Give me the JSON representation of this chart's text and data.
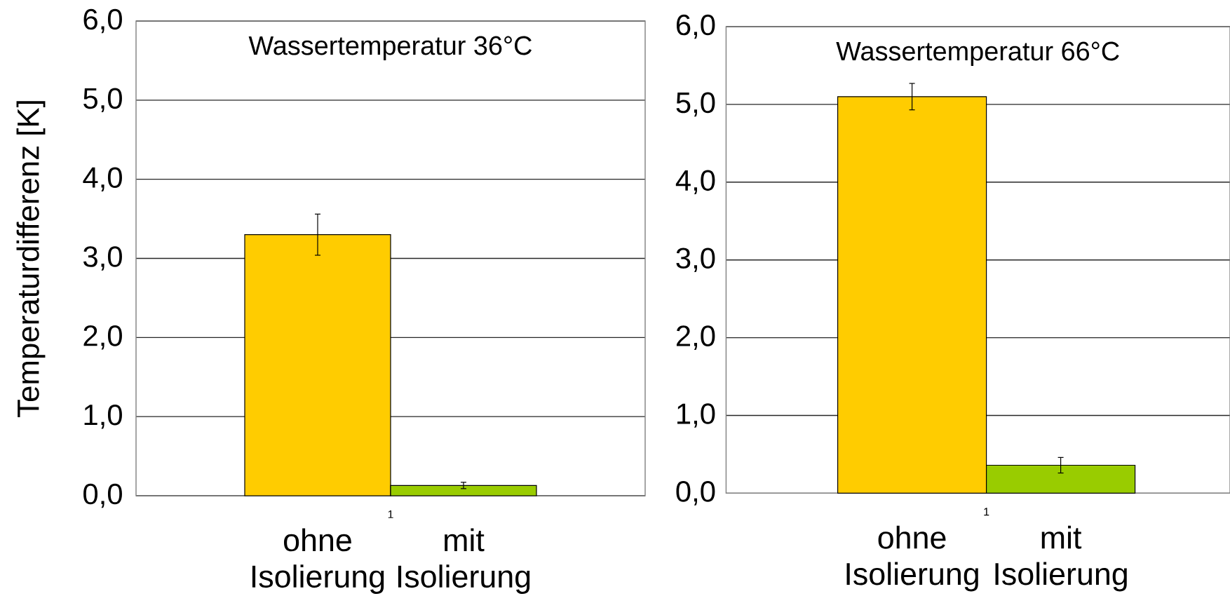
{
  "chart_data": [
    {
      "type": "bar",
      "title": "Wassertemperatur 36°C",
      "ylabel": "Temperaturdifferenz [K]",
      "categories": [
        "1"
      ],
      "series": [
        {
          "name": "ohne Isolierung",
          "color": "#ffcc00",
          "values": [
            3.3
          ],
          "errors": [
            0.26
          ]
        },
        {
          "name": "mit Isolierung",
          "color": "#99cc00",
          "values": [
            0.13
          ],
          "errors": [
            0.04
          ]
        }
      ],
      "ylim": [
        0,
        6
      ],
      "yticks": [
        {
          "value": 0,
          "label": "0,0"
        },
        {
          "value": 1,
          "label": "1,0"
        },
        {
          "value": 2,
          "label": "2,0"
        },
        {
          "value": 3,
          "label": "3,0"
        },
        {
          "value": 4,
          "label": "4,0"
        },
        {
          "value": 5,
          "label": "5,0"
        },
        {
          "value": 6,
          "label": "6,0"
        }
      ],
      "grid": "y"
    },
    {
      "type": "bar",
      "title": "Wassertemperatur 66°C",
      "categories": [
        "1"
      ],
      "series": [
        {
          "name": "ohne Isolierung",
          "color": "#ffcc00",
          "values": [
            5.1
          ],
          "errors": [
            0.17
          ]
        },
        {
          "name": "mit Isolierung",
          "color": "#99cc00",
          "values": [
            0.36
          ],
          "errors": [
            0.1
          ]
        }
      ],
      "ylim": [
        0,
        6
      ],
      "yticks": [
        {
          "value": 0,
          "label": "0,0"
        },
        {
          "value": 1,
          "label": "1,0"
        },
        {
          "value": 2,
          "label": "2,0"
        },
        {
          "value": 3,
          "label": "3,0"
        },
        {
          "value": 4,
          "label": "4,0"
        },
        {
          "value": 5,
          "label": "5,0"
        },
        {
          "value": 6,
          "label": "6,0"
        }
      ],
      "grid": "y"
    }
  ]
}
